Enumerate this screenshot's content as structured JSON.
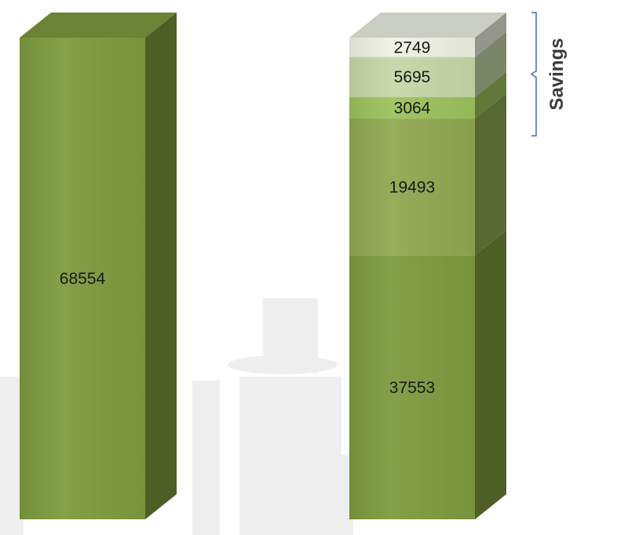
{
  "chart_data": {
    "type": "bar",
    "stacked": true,
    "categories": [
      "",
      ""
    ],
    "title": "",
    "xlabel": "",
    "ylabel": "",
    "ylim": [
      0,
      68554
    ],
    "grid": false,
    "bars": [
      {
        "segments": [
          {
            "value": 68554,
            "label": "68554",
            "color": "#7d9a3e"
          }
        ]
      },
      {
        "segments": [
          {
            "value": 37553,
            "label": "37553",
            "color": "#7d9a3e"
          },
          {
            "value": 19493,
            "label": "19493",
            "color": "#8fa851"
          },
          {
            "value": 3064,
            "label": "3064",
            "color": "#9cc15c"
          },
          {
            "value": 5695,
            "label": "5695",
            "color": "#c7d6a8"
          },
          {
            "value": 2749,
            "label": "2749",
            "color": "#eef1e3"
          }
        ]
      }
    ],
    "annotation": {
      "text": "Savings",
      "spans_segments": [
        1,
        2,
        3,
        4
      ]
    }
  }
}
